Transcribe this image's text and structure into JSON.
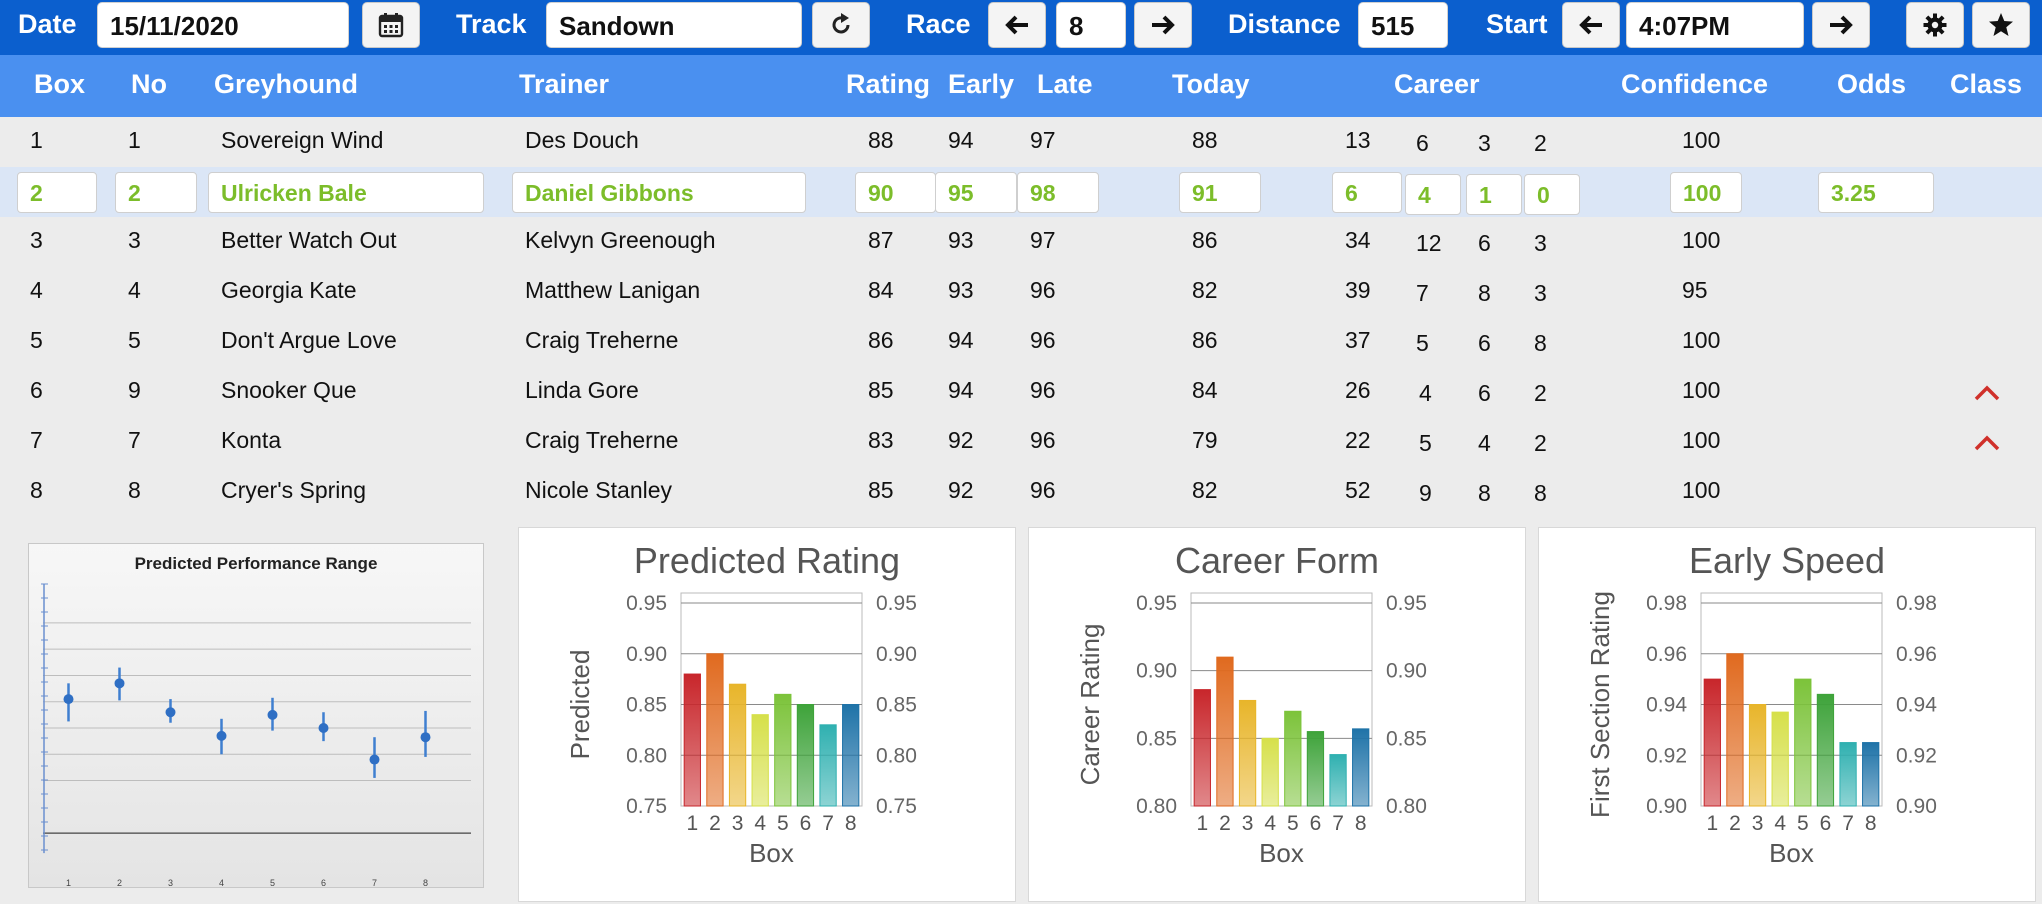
{
  "toolbar": {
    "date_label": "Date",
    "date_value": "15/11/2020",
    "calendar_icon": "calendar-icon",
    "track_label": "Track",
    "track_value": "Sandown",
    "refresh_icon": "refresh-icon",
    "race_label": "Race",
    "race_value": "8",
    "distance_label": "Distance",
    "distance_value": "515",
    "start_label": "Start",
    "start_value": "4:07PM",
    "settings_icon": "gear-icon",
    "favorite_icon": "star-icon"
  },
  "columns": {
    "box": "Box",
    "no": "No",
    "greyhound": "Greyhound",
    "trainer": "Trainer",
    "rating": "Rating",
    "early": "Early",
    "late": "Late",
    "today": "Today",
    "career": "Career",
    "confidence": "Confidence",
    "odds": "Odds",
    "class": "Class"
  },
  "rows": [
    {
      "box": "1",
      "no": "1",
      "greyhound": "Sovereign Wind",
      "trainer": "Des Douch",
      "rating": "88",
      "early": "94",
      "late": "97",
      "today": "88",
      "c1": "13",
      "c2": "6",
      "c3": "3",
      "c4": "2",
      "confidence": "100",
      "odds": "",
      "class_icon": ""
    },
    {
      "box": "2",
      "no": "2",
      "greyhound": "Ulricken Bale",
      "trainer": "Daniel Gibbons",
      "rating": "90",
      "early": "95",
      "late": "98",
      "today": "91",
      "c1": "6",
      "c2": "4",
      "c3": "1",
      "c4": "0",
      "confidence": "100",
      "odds": "3.25",
      "class_icon": "",
      "selected": true
    },
    {
      "box": "3",
      "no": "3",
      "greyhound": "Better Watch Out",
      "trainer": "Kelvyn Greenough",
      "rating": "87",
      "early": "93",
      "late": "97",
      "today": "86",
      "c1": "34",
      "c2": "12",
      "c3": "6",
      "c4": "3",
      "confidence": "100",
      "odds": "",
      "class_icon": ""
    },
    {
      "box": "4",
      "no": "4",
      "greyhound": "Georgia Kate",
      "trainer": "Matthew Lanigan",
      "rating": "84",
      "early": "93",
      "late": "96",
      "today": "82",
      "c1": "39",
      "c2": "7",
      "c3": "8",
      "c4": "3",
      "confidence": "95",
      "odds": "",
      "class_icon": ""
    },
    {
      "box": "5",
      "no": "5",
      "greyhound": "Don't Argue Love",
      "trainer": "Craig Treherne",
      "rating": "86",
      "early": "94",
      "late": "96",
      "today": "86",
      "c1": "37",
      "c2": "5",
      "c3": "6",
      "c4": "8",
      "confidence": "100",
      "odds": "",
      "class_icon": ""
    },
    {
      "box": "6",
      "no": "9",
      "greyhound": "Snooker Que",
      "trainer": "Linda Gore",
      "rating": "85",
      "early": "94",
      "late": "96",
      "today": "84",
      "c1": "26",
      "c2": "4",
      "c3": "6",
      "c4": "2",
      "confidence": "100",
      "odds": "",
      "class_icon": "chevron-up-icon"
    },
    {
      "box": "7",
      "no": "7",
      "greyhound": "Konta",
      "trainer": "Craig Treherne",
      "rating": "83",
      "early": "92",
      "late": "96",
      "today": "79",
      "c1": "22",
      "c2": "5",
      "c3": "4",
      "c4": "2",
      "confidence": "100",
      "odds": "",
      "class_icon": "chevron-up-icon"
    },
    {
      "box": "8",
      "no": "8",
      "greyhound": "Cryer's Spring",
      "trainer": "Nicole Stanley",
      "rating": "85",
      "early": "92",
      "late": "96",
      "today": "82",
      "c1": "52",
      "c2": "9",
      "c3": "8",
      "c4": "8",
      "confidence": "100",
      "odds": "",
      "class_icon": ""
    }
  ],
  "colors": {
    "topbar": "#0b5fce",
    "header": "#4a90f0",
    "selected_text": "#7cbd2a",
    "caret": "#d0302a",
    "bars": [
      "#c8262b",
      "#e06a1f",
      "#e8b52a",
      "#d6e04a",
      "#7cc33a",
      "#3ea33a",
      "#2fb0b0",
      "#1f73a8"
    ]
  },
  "chart_data": [
    {
      "type": "scatter",
      "title": "Predicted Performance Range",
      "x": [
        1,
        2,
        3,
        4,
        5,
        6,
        7,
        8
      ],
      "y": [
        0.62,
        0.74,
        0.52,
        0.34,
        0.5,
        0.4,
        0.16,
        0.33
      ],
      "y_low": [
        0.45,
        0.61,
        0.44,
        0.2,
        0.38,
        0.3,
        0.02,
        0.18
      ],
      "y_high": [
        0.74,
        0.86,
        0.62,
        0.47,
        0.63,
        0.52,
        0.33,
        0.53
      ],
      "ylim": [
        -0.62,
        1.42
      ],
      "grid": true
    },
    {
      "type": "bar",
      "title": "Predicted Rating",
      "categories": [
        "1",
        "2",
        "3",
        "4",
        "5",
        "6",
        "7",
        "8"
      ],
      "values": [
        0.88,
        0.9,
        0.87,
        0.84,
        0.86,
        0.85,
        0.83,
        0.85
      ],
      "xlabel": "Box",
      "ylabel": "Predicted",
      "ylim": [
        0.75,
        0.95
      ],
      "yticks": [
        "0.75",
        "0.80",
        "0.85",
        "0.90",
        "0.95"
      ],
      "grid": true
    },
    {
      "type": "bar",
      "title": "Career Form",
      "categories": [
        "1",
        "2",
        "3",
        "4",
        "5",
        "6",
        "7",
        "8"
      ],
      "values": [
        0.886,
        0.91,
        0.878,
        0.85,
        0.87,
        0.855,
        0.838,
        0.857
      ],
      "xlabel": "Box",
      "ylabel": "Career Rating",
      "ylim": [
        0.8,
        0.95
      ],
      "yticks": [
        "0.80",
        "0.85",
        "0.90",
        "0.95"
      ],
      "grid": true
    },
    {
      "type": "bar",
      "title": "Early Speed",
      "categories": [
        "1",
        "2",
        "3",
        "4",
        "5",
        "6",
        "7",
        "8"
      ],
      "values": [
        0.95,
        0.96,
        0.94,
        0.937,
        0.95,
        0.944,
        0.925,
        0.925
      ],
      "xlabel": "Box",
      "ylabel": "First Section Rating",
      "ylim": [
        0.9,
        0.98
      ],
      "yticks": [
        "0.90",
        "0.92",
        "0.94",
        "0.96",
        "0.98"
      ],
      "grid": true
    }
  ]
}
